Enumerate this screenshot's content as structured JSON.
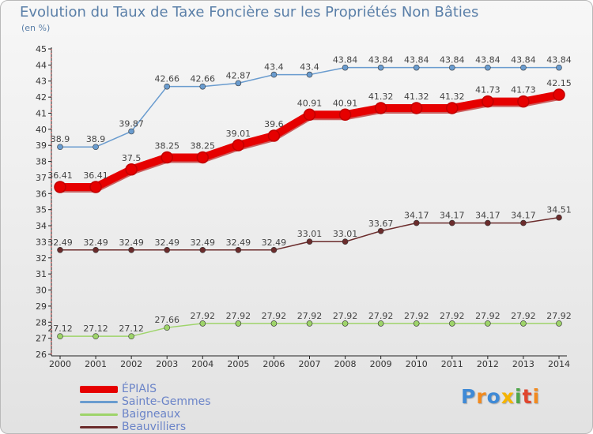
{
  "title": "Evolution du Taux de Taxe Foncière sur les Propriétés Non Bâties",
  "subtitle": "(en %)",
  "brand": {
    "text": "Proxiti",
    "letters": [
      {
        "ch": "P",
        "color": "#3f8ad6"
      },
      {
        "ch": "r",
        "color": "#f28a1e"
      },
      {
        "ch": "o",
        "color": "#3f8ad6"
      },
      {
        "ch": "x",
        "color": "#f5b400"
      },
      {
        "ch": "i",
        "color": "#4ea64a"
      },
      {
        "ch": "t",
        "color": "#e0462f"
      },
      {
        "ch": "i",
        "color": "#f28a1e"
      }
    ]
  },
  "chart_data": {
    "type": "line",
    "x": [
      "2000",
      "2001",
      "2002",
      "2003",
      "2004",
      "2005",
      "2006",
      "2007",
      "2008",
      "2009",
      "2010",
      "2011",
      "2012",
      "2013",
      "2014"
    ],
    "ylim": [
      26,
      45
    ],
    "yticks": [
      26,
      27,
      28,
      29,
      30,
      31,
      32,
      33,
      34,
      35,
      36,
      37,
      38,
      39,
      40,
      41,
      42,
      43,
      44,
      45
    ],
    "grid": false,
    "legend_position": "bottom-left",
    "series": [
      {
        "name": "ÉPIAIS",
        "color": "#e60000",
        "emphasis": true,
        "values": [
          36.41,
          36.41,
          37.5,
          38.25,
          38.25,
          39.01,
          39.6,
          40.91,
          40.91,
          41.32,
          41.32,
          41.32,
          41.73,
          41.73,
          42.15
        ],
        "labels": [
          "36.41",
          "36.41",
          "37.5",
          "38.25",
          "38.25",
          "39.01",
          "39.6",
          "40.91",
          "40.91",
          "41.32",
          "41.32",
          "41.32",
          "41.73",
          "41.73",
          "42.15"
        ]
      },
      {
        "name": "Sainte-Gemmes",
        "color": "#6a9ccf",
        "emphasis": false,
        "values": [
          38.9,
          38.9,
          39.87,
          42.66,
          42.66,
          42.87,
          43.4,
          43.4,
          43.84,
          43.84,
          43.84,
          43.84,
          43.84,
          43.84,
          43.84
        ],
        "labels": [
          "38.9",
          "38.9",
          "39.87",
          "42.66",
          "42.66",
          "42.87",
          "43.4",
          "43.4",
          "43.84",
          "43.84",
          "43.84",
          "43.84",
          "43.84",
          "43.84",
          "43.84"
        ]
      },
      {
        "name": "Baigneaux",
        "color": "#9ed46a",
        "emphasis": false,
        "values": [
          27.12,
          27.12,
          27.12,
          27.66,
          27.92,
          27.92,
          27.92,
          27.92,
          27.92,
          27.92,
          27.92,
          27.92,
          27.92,
          27.92,
          27.92
        ],
        "labels": [
          "27.12",
          "27.12",
          "27.12",
          "27.66",
          "27.92",
          "27.92",
          "27.92",
          "27.92",
          "27.92",
          "27.92",
          "27.92",
          "27.92",
          "27.92",
          "27.92",
          "27.92"
        ]
      },
      {
        "name": "Beauvilliers",
        "color": "#6b2c2c",
        "emphasis": false,
        "values": [
          32.49,
          32.49,
          32.49,
          32.49,
          32.49,
          32.49,
          32.49,
          33.01,
          33.01,
          33.67,
          34.17,
          34.17,
          34.17,
          34.17,
          34.51
        ],
        "labels": [
          "32.49",
          "32.49",
          "32.49",
          "32.49",
          "32.49",
          "32.49",
          "32.49",
          "33.01",
          "33.01",
          "33.67",
          "34.17",
          "34.17",
          "34.17",
          "34.17",
          "34.51"
        ]
      }
    ]
  }
}
